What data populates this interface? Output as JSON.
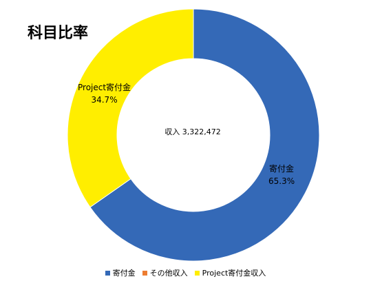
{
  "title": "科目比率",
  "center": {
    "text": "収入 3,322,472"
  },
  "chart_data": {
    "type": "pie",
    "donut": true,
    "title": "科目比率",
    "total_label": "収入 3,322,472",
    "slices": [
      {
        "name": "寄付金",
        "value": 65.3,
        "percent_label": "65.3%",
        "color": "#3469b7"
      },
      {
        "name": "その他収入",
        "value": 0,
        "percent_label": "",
        "color": "#ed7d31"
      },
      {
        "name": "Project寄付金収入",
        "value": 34.7,
        "percent_label": "34.7%",
        "color": "#ffee00"
      }
    ],
    "data_labels": [
      {
        "slice": "寄付金",
        "name": "寄付金",
        "percent": "65.3%"
      },
      {
        "slice": "Project寄付金収入",
        "name": "Project寄付金",
        "percent": "34.7%"
      }
    ],
    "legend": {
      "position": "bottom",
      "entries": [
        "寄付金",
        "その他収入",
        "Project寄付金収入"
      ]
    }
  }
}
